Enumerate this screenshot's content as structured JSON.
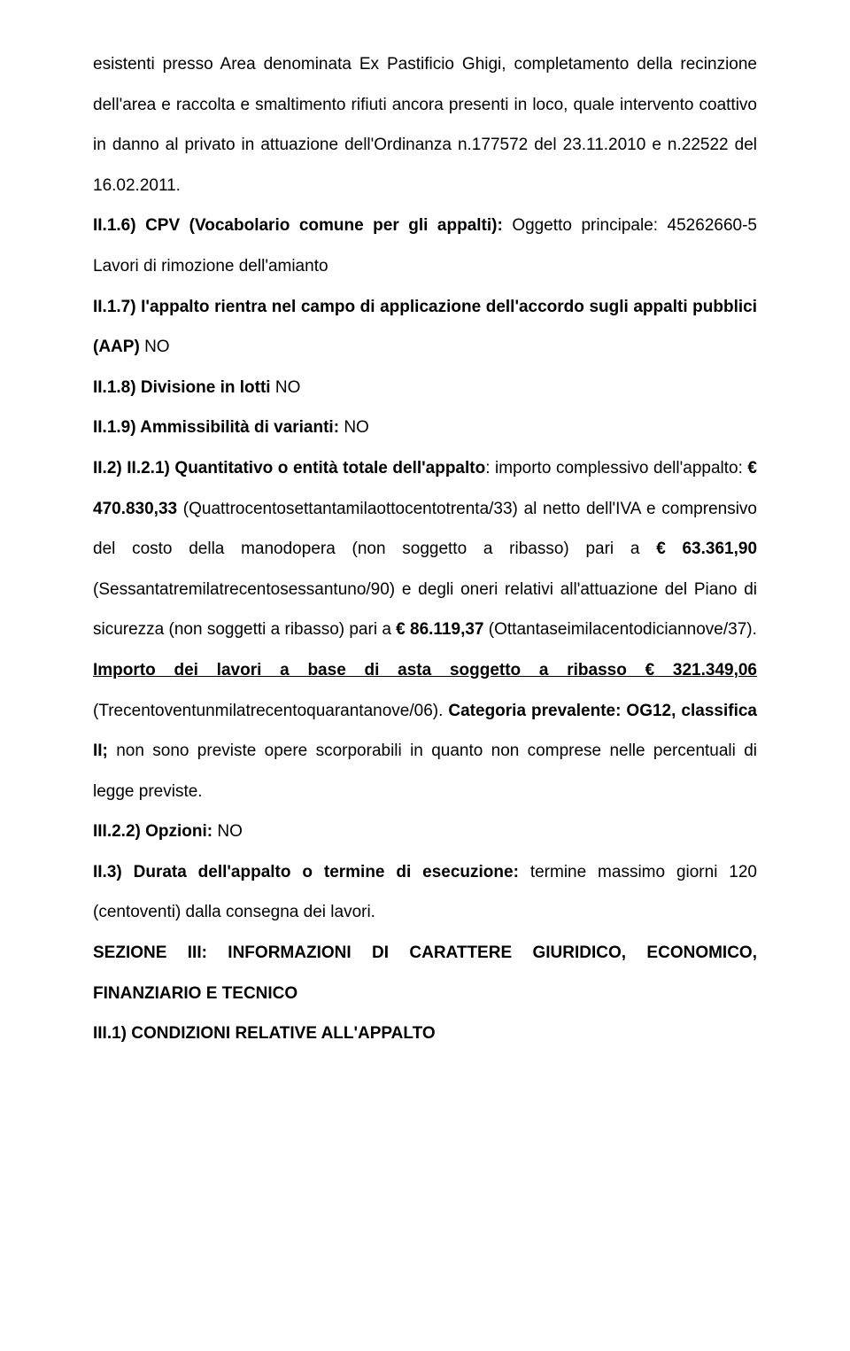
{
  "p1_a": "esistenti presso Area denominata Ex Pastificio Ghigi, completamento della recinzione dell'area e raccolta e smaltimento rifiuti ancora presenti in loco, quale intervento coattivo in danno al privato in attuazione dell'Ordinanza n.177572 del 23.11.2010 e n.22522 del 16.02.2011.",
  "p2_label": "II.1.6) CPV (Vocabolario comune per gli appalti): ",
  "p2_text": "Oggetto principale: 45262660-5 Lavori di rimozione dell'amianto",
  "p3_label": "II.1.7) I'appalto rientra nel campo di applicazione dell'accordo sugli appalti pubblici (AAP) ",
  "p3_val": "NO",
  "p4_label": "II.1.8) Divisione in lotti ",
  "p4_val": "NO",
  "p5_label": "II.1.9) Ammissibilità di varianti: ",
  "p5_val": "NO",
  "p6_label": "II.2) II.2.1) Quantitativo o entità totale dell'appalto",
  "p6_text_a": ": importo complessivo dell'appalto: ",
  "p6_amount": "€ 470.830,33",
  "p6_text_b": " (Quattrocentosettantamilaottocentotrenta/33) al netto dell'IVA e comprensivo del costo della manodopera (non soggetto a ribasso) pari a ",
  "p6_amount2": "€ 63.361,90",
  "p6_text_c": " (Sessantatremilatrecentosessantuno/90) e degli oneri relativi all'attuazione del Piano di sicurezza (non soggetti a ribasso) pari a ",
  "p6_amount3": "€ 86.119,37",
  "p6_text_d": " (Ottantaseimilacentodiciannove/37).",
  "p7_underline": "Importo dei lavori a base di asta soggetto a ribasso € 321.349,06",
  "p7_text_a": " (Trecentoventunmilatrecentoquarantanove/06). ",
  "p7_bold": "Categoria prevalente: OG12, classifica II;",
  "p7_text_b": " non sono previste opere scorporabili in quanto non comprese nelle percentuali di legge previste.",
  "p8_label": "III.2.2) Opzioni: ",
  "p8_val": "NO",
  "p9_label": "II.3) Durata dell'appalto o termine di esecuzione: ",
  "p9_text": "termine massimo giorni 120 (centoventi) dalla consegna dei lavori.",
  "p10": "SEZIONE III: INFORMAZIONI DI CARATTERE GIURIDICO, ECONOMICO, FINANZIARIO E TECNICO",
  "p11": "III.1) CONDIZIONI RELATIVE ALL'APPALTO"
}
